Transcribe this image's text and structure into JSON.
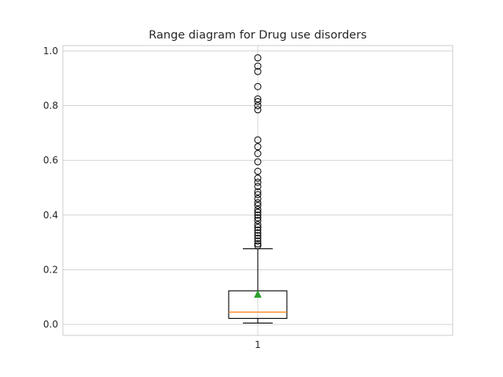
{
  "chart_data": {
    "type": "boxplot",
    "title": "Range diagram for Drug use disorders",
    "xlabel": "",
    "ylabel": "",
    "categories": [
      "1"
    ],
    "ylim": [
      -0.04,
      1.02
    ],
    "yticks": [
      0.0,
      0.2,
      0.4,
      0.6,
      0.8,
      1.0
    ],
    "ytick_labels": [
      "0.0",
      "0.2",
      "0.4",
      "0.6",
      "0.8",
      "1.0"
    ],
    "grid": true,
    "box": {
      "q1": 0.022,
      "median": 0.045,
      "q3": 0.123,
      "whisker_low": 0.005,
      "whisker_high": 0.277,
      "mean": 0.11,
      "outliers": [
        0.975,
        0.945,
        0.925,
        0.87,
        0.825,
        0.815,
        0.8,
        0.785,
        0.675,
        0.65,
        0.625,
        0.595,
        0.56,
        0.535,
        0.52,
        0.505,
        0.485,
        0.475,
        0.46,
        0.445,
        0.435,
        0.42,
        0.41,
        0.4,
        0.39,
        0.38,
        0.365,
        0.355,
        0.345,
        0.335,
        0.325,
        0.315,
        0.305,
        0.295,
        0.288
      ]
    },
    "colors": {
      "box": "#000000",
      "median": "#ff7f0e",
      "mean": "#2ca02c",
      "grid": "#cccccc",
      "spine": "#cccccc"
    }
  }
}
